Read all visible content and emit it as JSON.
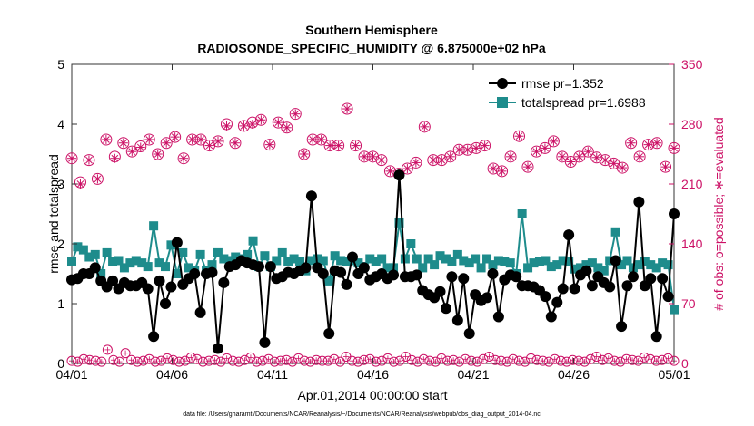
{
  "chart_data": {
    "type": "line",
    "title": "Southern Hemisphere",
    "subtitle": "RADIOSONDE_SPECIFIC_HUMIDITY @ 6.875000e+02 hPa",
    "xlabel": "Apr.01,2014 00:00:00 start",
    "ylabel": "rmse and totalspread",
    "ylabel_right": "# of obs: o=possible; ∗=evaluated",
    "footnote": "data file: /Users/gharamti/Documents/NCAR/Reanalysis/~/Documents/NCAR/Reanalysis/webpub/obs_diag_output_2014-04.nc",
    "xlim": [
      0,
      30
    ],
    "ylim": [
      0,
      5
    ],
    "ylim_right": [
      0,
      350
    ],
    "x_ticks": [
      0,
      5,
      10,
      15,
      20,
      25,
      30
    ],
    "x_tick_labels": [
      "04/01",
      "04/06",
      "04/11",
      "04/16",
      "04/21",
      "04/26",
      "05/01"
    ],
    "y_ticks": [
      0,
      1,
      2,
      3,
      4,
      5
    ],
    "y_tick_labels": [
      "0",
      "1",
      "2",
      "3",
      "4",
      "5"
    ],
    "y_right_ticks": [
      0,
      70,
      140,
      210,
      280,
      350
    ],
    "y_right_tick_labels": [
      "0",
      "70",
      "140",
      "210",
      "280",
      "350"
    ],
    "legend": [
      "rmse pr=1.352",
      "totalspread pr=1.6988"
    ],
    "legend_position": "top-right",
    "series": [
      {
        "name": "rmse pr=1.352",
        "color": "#000000",
        "values": [
          1.4,
          1.42,
          1.5,
          1.5,
          1.6,
          1.38,
          1.28,
          1.38,
          1.25,
          1.35,
          1.3,
          1.3,
          1.35,
          1.25,
          0.45,
          1.38,
          1.0,
          1.28,
          2.02,
          1.32,
          1.42,
          1.5,
          0.85,
          1.5,
          1.52,
          0.25,
          1.35,
          1.62,
          1.65,
          1.72,
          1.68,
          1.65,
          1.62,
          0.35,
          1.62,
          1.42,
          1.45,
          1.52,
          1.5,
          1.55,
          1.6,
          2.8,
          1.6,
          1.5,
          0.5,
          1.55,
          1.52,
          1.32,
          1.78,
          1.5,
          1.6,
          1.4,
          1.45,
          1.5,
          1.42,
          1.48,
          3.15,
          1.45,
          1.45,
          1.48,
          1.22,
          1.15,
          1.1,
          1.2,
          0.92,
          1.45,
          0.72,
          1.42,
          0.5,
          1.15,
          1.05,
          1.1,
          1.5,
          0.78,
          1.4,
          1.48,
          1.45,
          1.3,
          1.3,
          1.28,
          1.22,
          1.12,
          0.78,
          1.02,
          1.25,
          2.15,
          1.25,
          1.48,
          1.55,
          1.3,
          1.45,
          1.35,
          1.28,
          1.72,
          0.62,
          1.3,
          1.45,
          2.7,
          1.3,
          1.42,
          0.45,
          1.42,
          1.12,
          2.5
        ],
        "mode": "line+markers"
      },
      {
        "name": "totalspread pr=1.6988",
        "color": "#1e8c8c",
        "values": [
          1.7,
          1.95,
          1.9,
          1.78,
          1.82,
          1.5,
          1.85,
          1.7,
          1.72,
          1.6,
          1.68,
          1.72,
          1.68,
          1.62,
          2.3,
          1.68,
          1.62,
          1.98,
          1.5,
          1.85,
          1.6,
          1.55,
          1.82,
          1.55,
          1.65,
          1.85,
          1.75,
          1.72,
          1.78,
          1.75,
          1.82,
          2.05,
          1.62,
          1.8,
          1.62,
          1.72,
          1.85,
          1.7,
          1.75,
          1.7,
          1.55,
          1.72,
          1.75,
          1.72,
          1.38,
          1.8,
          1.72,
          1.7,
          1.72,
          1.68,
          1.62,
          1.75,
          1.7,
          1.75,
          1.6,
          1.6,
          2.35,
          1.75,
          2.0,
          1.75,
          1.6,
          1.75,
          1.65,
          1.8,
          1.75,
          1.7,
          1.82,
          1.72,
          1.68,
          1.75,
          1.6,
          1.75,
          1.65,
          1.72,
          1.7,
          1.68,
          1.5,
          2.5,
          1.6,
          1.68,
          1.7,
          1.72,
          1.62,
          1.65,
          1.72,
          1.7,
          1.58,
          1.6,
          1.65,
          1.68,
          1.6,
          1.55,
          1.72,
          2.2,
          1.65,
          1.72,
          1.6,
          1.65,
          1.7,
          1.65,
          1.6,
          1.68,
          1.65,
          0.9
        ],
        "mode": "line+markers"
      },
      {
        "name": "possible obs",
        "color": "#cc1166",
        "axis": "right",
        "marker": "circle",
        "values": [
          240,
          212,
          238,
          216,
          262,
          242,
          258,
          248,
          254,
          262,
          245,
          258,
          265,
          240,
          262,
          262,
          255,
          260,
          280,
          258,
          278,
          282,
          285,
          256,
          282,
          276,
          292,
          245,
          262,
          262,
          255,
          255,
          298,
          255,
          242,
          242,
          238,
          225,
          222,
          228,
          235,
          277,
          238,
          238,
          242,
          250,
          250,
          252,
          255,
          228,
          225,
          242,
          266,
          230,
          248,
          252,
          260,
          242,
          236,
          242,
          248,
          241,
          238,
          234,
          229,
          258,
          242,
          256,
          258,
          230,
          252
        ]
      },
      {
        "name": "evaluated obs",
        "color": "#cc1166",
        "axis": "right",
        "marker": "asterisk",
        "values": [
          240,
          210,
          238,
          216,
          262,
          240,
          258,
          248,
          253,
          262,
          245,
          258,
          265,
          240,
          262,
          262,
          255,
          260,
          278,
          258,
          278,
          280,
          285,
          256,
          282,
          276,
          292,
          245,
          262,
          262,
          255,
          255,
          298,
          255,
          242,
          242,
          238,
          225,
          222,
          228,
          235,
          277,
          238,
          238,
          242,
          250,
          250,
          252,
          255,
          228,
          225,
          242,
          266,
          230,
          248,
          252,
          260,
          242,
          236,
          242,
          248,
          241,
          238,
          234,
          229,
          258,
          242,
          256,
          258,
          230,
          252
        ]
      }
    ],
    "low_obs_values": [
      3,
      2,
      5,
      4,
      3,
      2,
      16,
      4,
      2,
      12,
      4,
      2,
      3,
      5,
      2,
      3,
      6,
      4,
      2,
      3,
      7,
      5,
      2,
      3,
      4,
      2,
      6,
      3,
      2,
      4,
      7,
      2,
      3,
      5,
      2,
      3,
      4,
      2,
      6,
      3,
      2,
      4,
      3,
      3,
      5,
      2,
      8,
      3,
      2,
      4,
      5,
      2,
      3,
      6,
      2,
      3,
      8,
      4,
      2,
      5,
      3,
      2,
      6,
      3,
      4,
      2,
      5,
      3,
      2,
      5,
      8,
      4,
      3,
      2,
      5,
      3,
      2,
      6,
      4,
      3,
      2,
      5,
      3,
      2,
      4,
      3,
      2,
      5,
      8,
      4,
      6,
      3,
      2,
      5,
      4,
      3,
      7,
      5,
      3,
      4,
      6,
      3
    ]
  }
}
